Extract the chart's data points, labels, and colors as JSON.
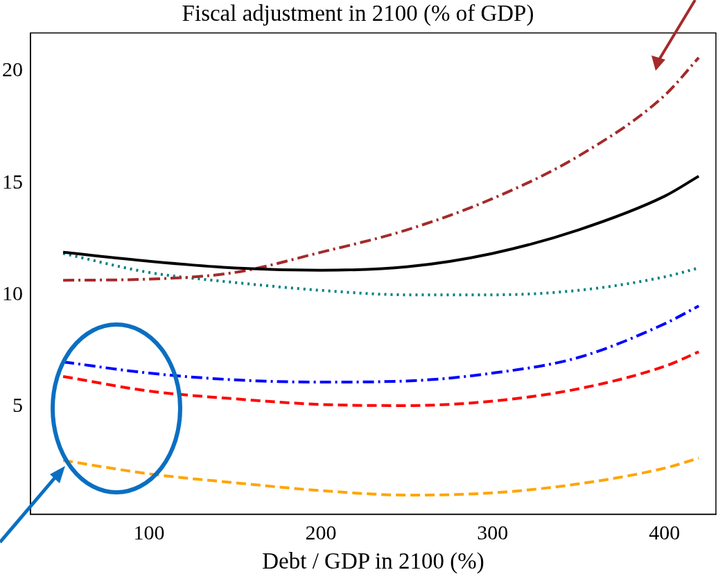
{
  "chart_data": {
    "type": "line",
    "title": "Fiscal adjustment in 2100 (% of GDP)",
    "xlabel": "Debt / GDP in 2100 (%)",
    "x": [
      50,
      100,
      150,
      200,
      250,
      300,
      350,
      400,
      420
    ],
    "series": [
      {
        "color": "#000000",
        "line_style": "solid",
        "values": [
          11.9,
          11.5,
          11.2,
          11.1,
          11.25,
          11.85,
          12.9,
          14.4,
          15.3
        ]
      },
      {
        "color": "#a52a2a",
        "line_style": "dashdot",
        "values": [
          10.65,
          10.7,
          11.0,
          11.9,
          12.9,
          14.3,
          16.2,
          18.9,
          20.6
        ]
      },
      {
        "color": "#008080",
        "line_style": "dotted",
        "values": [
          11.85,
          11.0,
          10.55,
          10.2,
          10.0,
          10.0,
          10.2,
          10.8,
          11.2
        ]
      },
      {
        "color": "#0000ff",
        "line_style": "dashdot",
        "values": [
          7.0,
          6.5,
          6.2,
          6.1,
          6.15,
          6.5,
          7.2,
          8.7,
          9.5
        ]
      },
      {
        "color": "#ff0000",
        "line_style": "dashed",
        "values": [
          6.35,
          5.7,
          5.35,
          5.1,
          5.05,
          5.25,
          5.8,
          6.8,
          7.45
        ]
      },
      {
        "color": "#ffa500",
        "line_style": "dashed",
        "values": [
          2.6,
          2.0,
          1.6,
          1.25,
          1.05,
          1.15,
          1.55,
          2.25,
          2.7
        ]
      }
    ],
    "xlim": [
      31,
      430
    ],
    "xticks": [
      100,
      200,
      300,
      400
    ],
    "ylim": [
      0.2,
      21.7
    ],
    "yticks": [
      5,
      10,
      15,
      20
    ],
    "grid": false,
    "legend": false,
    "marker": "none"
  }
}
